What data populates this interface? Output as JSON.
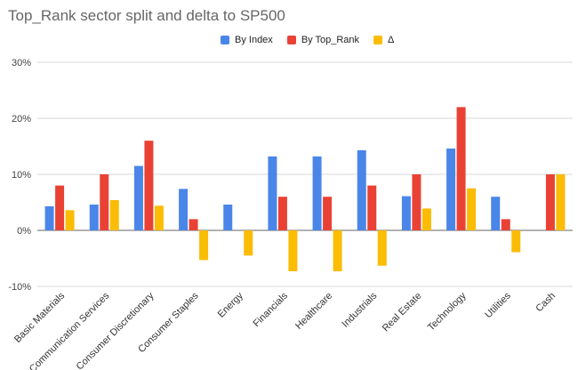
{
  "chart_data": {
    "type": "bar",
    "title": "Top_Rank sector split and delta to SP500",
    "categories": [
      "Basic Materials",
      "Communication Services",
      "Consumer Discretionary",
      "Consumer Staples",
      "Energy",
      "Financials",
      "Healthcare",
      "Industrials",
      "Real Estate",
      "Technology",
      "Utilities",
      "Cash"
    ],
    "series": [
      {
        "name": "By Index",
        "color": "#4a86e8",
        "values": [
          4.3,
          4.6,
          11.5,
          7.4,
          4.6,
          13.2,
          13.2,
          14.3,
          6.1,
          14.6,
          6.0,
          0.0
        ]
      },
      {
        "name": "By Top_Rank",
        "color": "#e94235",
        "values": [
          8.0,
          10.0,
          16.0,
          2.0,
          0.0,
          6.0,
          6.0,
          8.0,
          10.0,
          22.0,
          2.0,
          10.0
        ]
      },
      {
        "name": "Δ",
        "color": "#fbbc04",
        "values": [
          3.6,
          5.4,
          4.4,
          -5.3,
          -4.5,
          -7.3,
          -7.3,
          -6.3,
          3.9,
          7.5,
          -3.9,
          10.0
        ]
      }
    ],
    "ylim": [
      -10,
      30
    ],
    "yticks": [
      -10,
      0,
      10,
      20,
      30
    ],
    "ytick_labels": [
      "-10%",
      "0%",
      "10%",
      "20%",
      "30%"
    ],
    "legend_position": "top-center",
    "grid": true
  }
}
